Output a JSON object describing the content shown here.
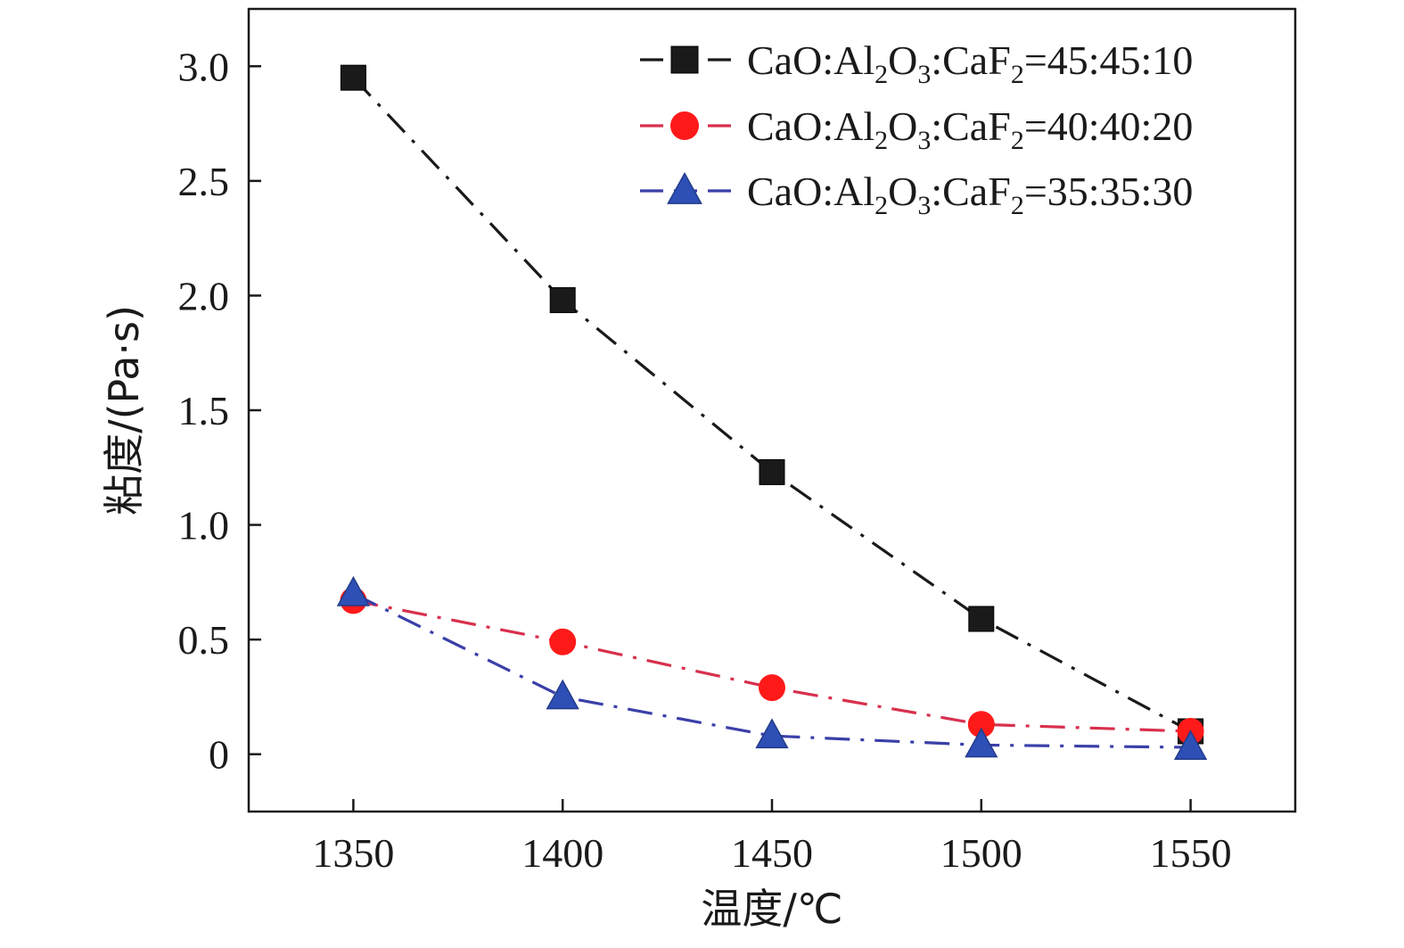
{
  "chart_data": {
    "type": "line",
    "x": [
      1350,
      1400,
      1450,
      1500,
      1550
    ],
    "xlabel": "温度/℃",
    "ylabel": "粘度/(Pa·s)",
    "xlim": [
      1325,
      1575
    ],
    "ylim": [
      -0.25,
      3.25
    ],
    "xticks": [
      1350,
      1400,
      1450,
      1500,
      1550
    ],
    "yticks": [
      0,
      0.5,
      1.0,
      1.5,
      2.0,
      2.5,
      3.0
    ],
    "xtick_labels": [
      "1350",
      "1400",
      "1450",
      "1500",
      "1550"
    ],
    "ytick_labels": [
      "0",
      "0.5",
      "1.0",
      "1.5",
      "2.0",
      "2.5",
      "3.0"
    ],
    "grid": false,
    "legend_position": "top-right",
    "series": [
      {
        "name": "CaO:Al2O3:CaF2=45:45:10",
        "legend": {
          "a": "CaO:Al",
          "b": "2",
          "c": "O",
          "d": "3",
          "e": ":CaF",
          "f": "2",
          "g": "=45:45:10"
        },
        "values": [
          2.95,
          1.98,
          1.23,
          0.59,
          0.1
        ],
        "color": "#1a1a1a",
        "marker": "square",
        "linestyle": "dashdot"
      },
      {
        "name": "CaO:Al2O3:CaF2=40:40:20",
        "legend": {
          "a": "CaO:Al",
          "b": "2",
          "c": "O",
          "d": "3",
          "e": ":CaF",
          "f": "2",
          "g": "=40:40:20"
        },
        "values": [
          0.67,
          0.49,
          0.29,
          0.13,
          0.1
        ],
        "color": "#ff1a1a",
        "line_color": "#d8304d",
        "marker": "circle",
        "linestyle": "dashdot"
      },
      {
        "name": "CaO:Al2O3:CaF2=35:35:30",
        "legend": {
          "a": "CaO:Al",
          "b": "2",
          "c": "O",
          "d": "3",
          "e": ":CaF",
          "f": "2",
          "g": "=35:35:30"
        },
        "values": [
          0.7,
          0.25,
          0.08,
          0.04,
          0.03
        ],
        "color": "#2e4fb5",
        "line_color": "#3a3fa8",
        "marker": "triangle",
        "linestyle": "dashdot"
      }
    ]
  }
}
